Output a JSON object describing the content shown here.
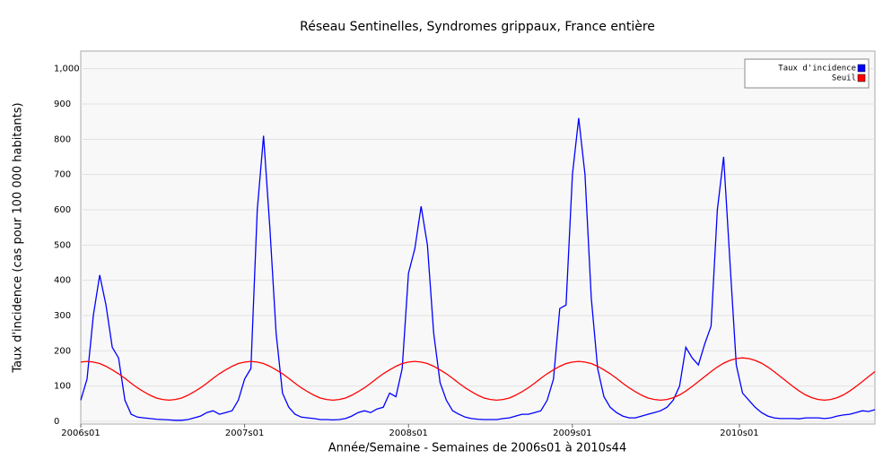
{
  "chart_data": {
    "type": "line",
    "title": "Réseau Sentinelles, Syndromes grippaux, France entière",
    "x_label": "Année/Semaine - Semaines de 2006s01 à 2010s44",
    "y_label": "Taux d'incidence (cas pour 100 000 habitants)",
    "x": [
      0,
      2,
      4,
      6,
      8,
      10,
      12,
      14,
      16,
      18,
      20,
      22,
      24,
      26,
      28,
      30,
      32,
      34,
      36,
      38,
      40,
      42,
      44,
      46,
      48,
      50,
      52,
      54,
      56,
      58,
      60,
      62,
      64,
      66,
      68,
      70,
      72,
      74,
      76,
      78,
      80,
      82,
      84,
      86,
      88,
      90,
      92,
      94,
      96,
      98,
      100,
      102,
      104,
      106,
      108,
      110,
      112,
      114,
      116,
      118,
      120,
      122,
      124,
      126,
      128,
      130,
      132,
      134,
      136,
      138,
      140,
      142,
      144,
      146,
      148,
      150,
      152,
      154,
      156,
      158,
      160,
      162,
      164,
      166,
      168,
      170,
      172,
      174,
      176,
      178,
      180,
      182,
      184,
      186,
      188,
      190,
      192,
      194,
      196,
      198,
      200,
      202,
      204,
      206,
      208,
      210,
      212,
      214,
      216,
      218,
      220,
      222,
      224,
      226,
      228,
      230,
      232,
      234,
      236,
      238,
      240,
      242,
      244,
      246,
      248,
      250,
      252
    ],
    "series": [
      {
        "name": "Taux d'incidence",
        "color": "#0000ff",
        "values": [
          60,
          120,
          300,
          415,
          330,
          210,
          180,
          60,
          20,
          12,
          10,
          8,
          6,
          5,
          4,
          3,
          3,
          5,
          10,
          15,
          25,
          30,
          20,
          25,
          30,
          60,
          120,
          150,
          600,
          810,
          550,
          250,
          80,
          40,
          20,
          12,
          10,
          8,
          5,
          5,
          4,
          5,
          8,
          15,
          25,
          30,
          25,
          35,
          40,
          80,
          70,
          150,
          420,
          490,
          610,
          500,
          250,
          110,
          60,
          30,
          20,
          12,
          8,
          6,
          5,
          5,
          5,
          8,
          10,
          15,
          20,
          20,
          25,
          30,
          60,
          120,
          320,
          330,
          700,
          860,
          700,
          350,
          150,
          70,
          40,
          25,
          15,
          10,
          10,
          15,
          20,
          25,
          30,
          40,
          60,
          100,
          210,
          180,
          160,
          220,
          270,
          600,
          750,
          450,
          160,
          80,
          60,
          40,
          25,
          15,
          10,
          8,
          8,
          8,
          7,
          10,
          10,
          10,
          8,
          10,
          15,
          18,
          20,
          25,
          30,
          28,
          33
        ]
      },
      {
        "name": "Seuil",
        "color": "#ff0000",
        "values": [
          168,
          170,
          168,
          164,
          156,
          146,
          135,
          122,
          108,
          95,
          84,
          74,
          66,
          62,
          60,
          62,
          66,
          74,
          84,
          95,
          108,
          122,
          135,
          146,
          156,
          164,
          168,
          170,
          168,
          164,
          156,
          146,
          135,
          122,
          108,
          95,
          84,
          74,
          66,
          62,
          60,
          62,
          66,
          74,
          84,
          95,
          108,
          122,
          135,
          146,
          156,
          164,
          168,
          170,
          168,
          164,
          156,
          146,
          135,
          122,
          108,
          95,
          84,
          74,
          66,
          62,
          60,
          62,
          66,
          74,
          84,
          95,
          108,
          122,
          135,
          146,
          156,
          164,
          168,
          170,
          168,
          164,
          156,
          146,
          135,
          122,
          108,
          95,
          84,
          74,
          66,
          62,
          60,
          62,
          67,
          75,
          86,
          99,
          113,
          127,
          141,
          154,
          165,
          173,
          178,
          180,
          178,
          173,
          165,
          154,
          141,
          127,
          113,
          99,
          86,
          75,
          67,
          62,
          60,
          62,
          67,
          75,
          86,
          99,
          113,
          127,
          141
        ]
      }
    ],
    "xlim": [
      0,
      252
    ],
    "xticks": [
      {
        "value": 0,
        "label": "2006s01"
      },
      {
        "value": 52,
        "label": "2007s01"
      },
      {
        "value": 104,
        "label": "2008s01"
      },
      {
        "value": 156,
        "label": "2009s01"
      },
      {
        "value": 209,
        "label": "2010s01"
      }
    ],
    "ylim": [
      0,
      1050
    ],
    "yticks": [
      0,
      100,
      200,
      300,
      400,
      500,
      600,
      700,
      800,
      900,
      {
        "value": 1000,
        "label": "1,000"
      }
    ],
    "grid": true,
    "legend": "top-right"
  }
}
